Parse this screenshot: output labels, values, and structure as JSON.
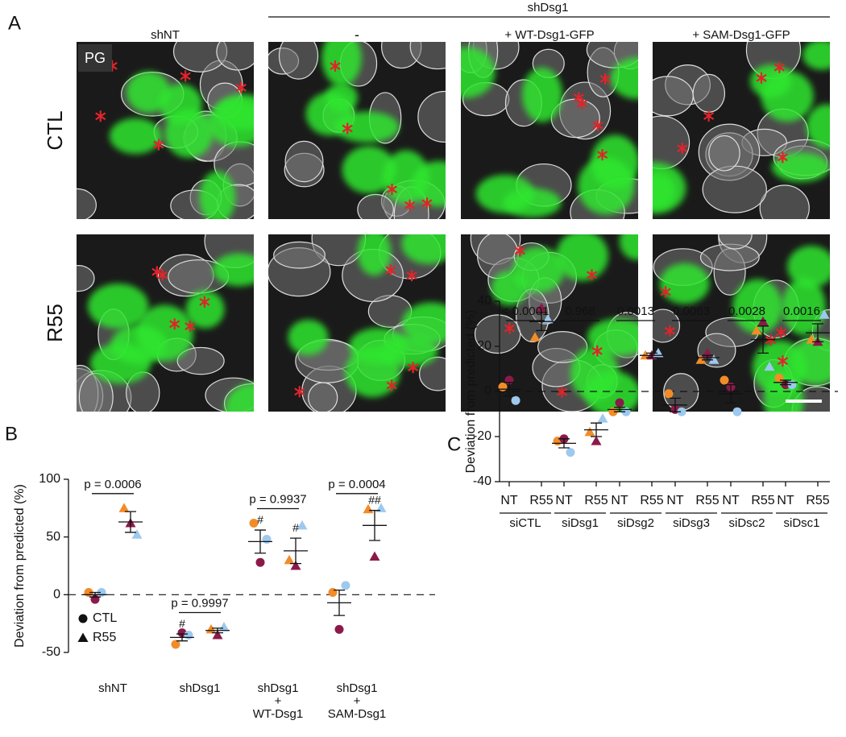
{
  "panel_labels": [
    "A",
    "B",
    "C"
  ],
  "images": {
    "group_header": "shDsg1",
    "column_headers": [
      "shNT",
      "-",
      "+ WT-Dsg1-GFP",
      "+ SAM-Dsg1-GFP"
    ],
    "row_labels": [
      "CTL",
      "R55"
    ],
    "stain_label": "PG"
  },
  "replicate_colors": [
    "#f28c28",
    "#8b1a4a",
    "#9ec9ee"
  ],
  "chart_data": [
    {
      "type": "dot",
      "ylabel": "Deviation from predicted (%)",
      "categories": [
        [
          "shNT"
        ],
        [
          "shDsg1"
        ],
        [
          "shDsg1",
          "+",
          "WT-Dsg1"
        ],
        [
          "shDsg1",
          "+",
          "SAM-Dsg1"
        ]
      ],
      "ylim": [
        -50,
        100
      ],
      "yticks": [
        -50,
        0,
        50,
        100
      ],
      "zero_line": "dashed",
      "legend": "lower left",
      "p_values": [
        "p = 0.0006",
        "p = 0.9997",
        "p = 0.9937",
        "p = 0.0004"
      ],
      "series": [
        {
          "name": "CTL",
          "marker": "circle",
          "values": [
            [
              2,
              -4,
              2
            ],
            [
              -43,
              -33,
              -35
            ],
            [
              62,
              28,
              48
            ],
            [
              2,
              -30,
              8
            ]
          ],
          "mean": [
            0,
            -37,
            46,
            -7
          ],
          "sem": [
            2,
            3,
            10,
            11
          ],
          "marks": [
            null,
            "#",
            "#",
            null
          ]
        },
        {
          "name": "R55",
          "marker": "triangle",
          "values": [
            [
              75,
              62,
              52
            ],
            [
              -30,
              -35,
              -28
            ],
            [
              30,
              25,
              60
            ],
            [
              74,
              33,
              75
            ]
          ],
          "mean": [
            63,
            -31,
            38,
            60
          ],
          "sem": [
            9,
            2,
            11,
            13
          ],
          "marks": [
            null,
            null,
            "#",
            "##"
          ]
        }
      ]
    },
    {
      "type": "dot",
      "ylabel": "Deviation from predicted (%)",
      "categories": [
        [
          "siCTL"
        ],
        [
          "siDsg1"
        ],
        [
          "siDsg2"
        ],
        [
          "siDsg3"
        ],
        [
          "siDsc2"
        ],
        [
          "siDsc1"
        ]
      ],
      "ylim": [
        -40,
        40
      ],
      "yticks": [
        -40,
        -20,
        0,
        20,
        40
      ],
      "zero_line": "dashed",
      "pair_labels": true,
      "p_values": [
        "< 0.0001",
        "0.968",
        "0.0013",
        "0.0063",
        "0.0028",
        "0.0016"
      ],
      "series": [
        {
          "name": "NT",
          "marker": "circle",
          "values": [
            [
              2,
              5,
              -4
            ],
            [
              -22,
              -21,
              -27
            ],
            [
              -9,
              -5,
              -9
            ],
            [
              -1,
              -8,
              -9
            ],
            [
              5,
              2,
              -9
            ],
            [
              6,
              3,
              3
            ]
          ],
          "mean": [
            1,
            -23,
            -8,
            -6,
            -1,
            4
          ],
          "sem": [
            3,
            2,
            1,
            3,
            4,
            1
          ]
        },
        {
          "name": "R55",
          "marker": "triangle",
          "values": [
            [
              24,
              37,
              32
            ],
            [
              -18,
              -22,
              -12
            ],
            [
              16,
              16,
              17
            ],
            [
              14,
              17,
              14
            ],
            [
              27,
              31,
              11
            ],
            [
              23,
              22,
              34
            ]
          ],
          "mean": [
            31,
            -17,
            16,
            15,
            23,
            26
          ],
          "sem": [
            4,
            3,
            1,
            1,
            6,
            4
          ]
        }
      ]
    }
  ]
}
